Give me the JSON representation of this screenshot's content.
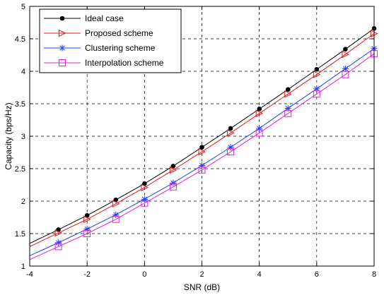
{
  "chart_data": {
    "type": "line",
    "title": "",
    "xlabel": "SNR (dB)",
    "ylabel": "Capacity (bps/Hz)",
    "xlim": [
      -4,
      8
    ],
    "ylim": [
      1,
      5
    ],
    "xticks": [
      -4,
      -2,
      0,
      2,
      4,
      6,
      8
    ],
    "yticks": [
      1,
      1.5,
      2,
      2.5,
      3,
      3.5,
      4,
      4.5,
      5
    ],
    "xtick_labels": [
      "-4",
      "-2",
      "0",
      "2",
      "4",
      "6",
      "8"
    ],
    "ytick_labels": [
      "1",
      "1.5",
      "2",
      "2.5",
      "3",
      "3.5",
      "4",
      "4.5",
      "5"
    ],
    "grid": true,
    "grid_style": "dashed",
    "legend_position": "top-left",
    "curve_x": [
      -4,
      -3,
      -2,
      -1,
      0,
      1,
      2,
      3,
      4,
      5,
      6,
      7,
      8
    ],
    "marker_x": [
      -3,
      -2,
      -1,
      0,
      1,
      2,
      3,
      4,
      5,
      6,
      7,
      8
    ],
    "series": [
      {
        "name": "Ideal case",
        "color": "#000000",
        "marker": "dot",
        "values": [
          1.35,
          1.56,
          1.78,
          2.02,
          2.27,
          2.54,
          2.83,
          3.12,
          3.42,
          3.72,
          4.03,
          4.34,
          4.66
        ]
      },
      {
        "name": "Proposed scheme",
        "color": "#e31a1c",
        "marker": "triangle-right",
        "values": [
          1.3,
          1.51,
          1.72,
          1.96,
          2.21,
          2.48,
          2.76,
          3.05,
          3.35,
          3.65,
          3.95,
          4.26,
          4.58
        ]
      },
      {
        "name": "Clustering scheme",
        "color": "#1f3fff",
        "marker": "asterisk",
        "values": [
          1.16,
          1.36,
          1.57,
          1.79,
          2.03,
          2.28,
          2.55,
          2.83,
          3.12,
          3.43,
          3.73,
          4.04,
          4.35
        ]
      },
      {
        "name": "Interpolation scheme",
        "color": "#e020e0",
        "marker": "square",
        "values": [
          1.1,
          1.3,
          1.5,
          1.72,
          1.97,
          2.22,
          2.48,
          2.76,
          3.05,
          3.35,
          3.65,
          3.95,
          4.27
        ]
      }
    ]
  }
}
